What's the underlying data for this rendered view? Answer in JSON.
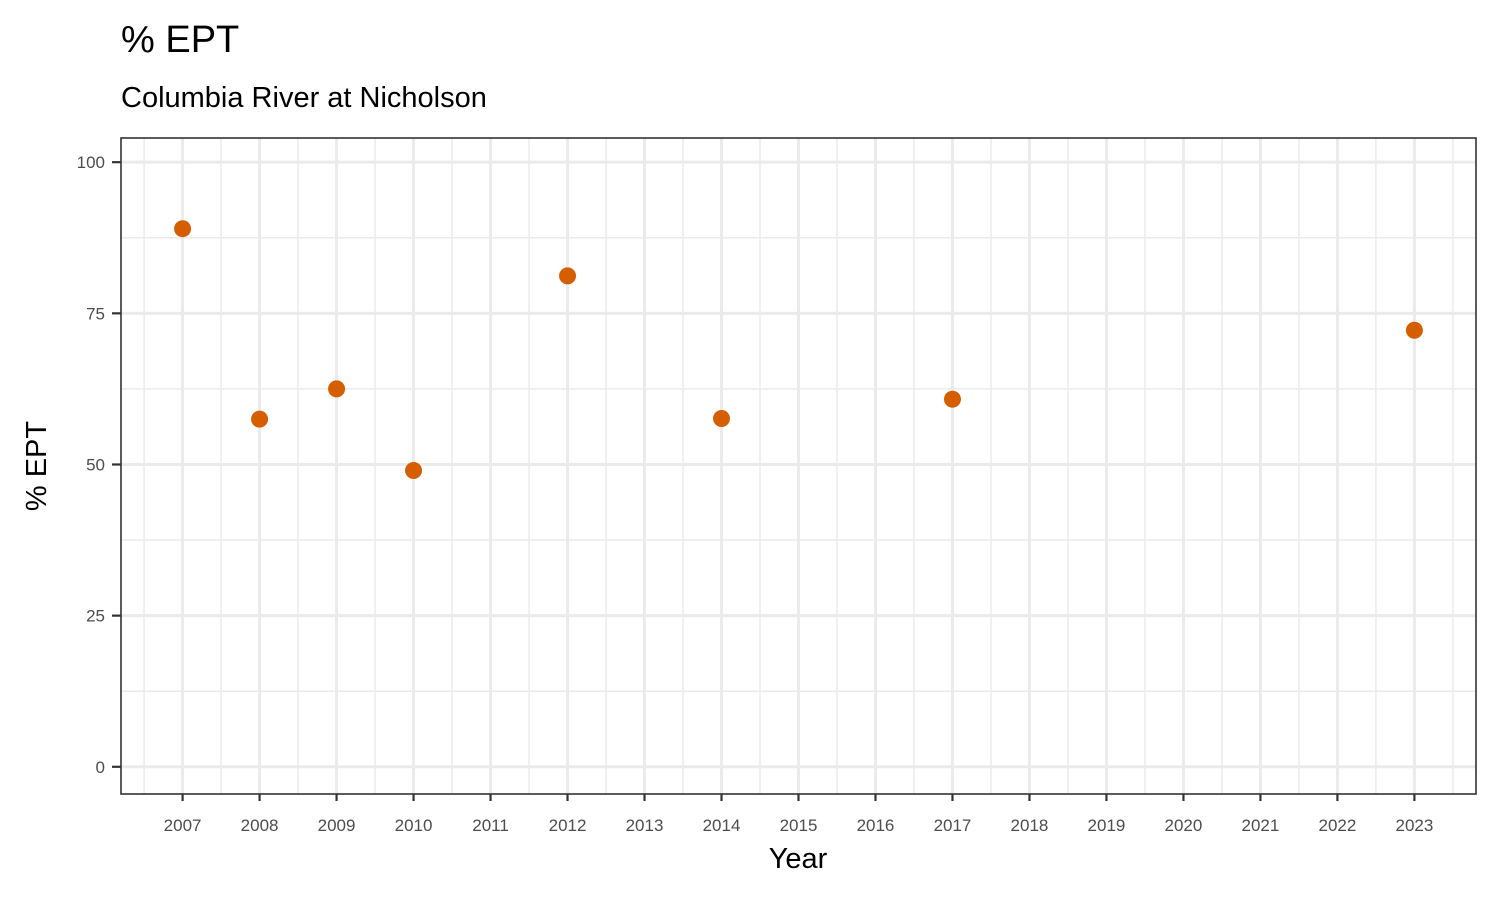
{
  "chart_data": {
    "type": "scatter",
    "title": "% EPT",
    "subtitle": "Columbia River at Nicholson",
    "xlabel": "Year",
    "ylabel": "% EPT",
    "x_ticks": [
      "2007",
      "2008",
      "2009",
      "2010",
      "2011",
      "2012",
      "2013",
      "2014",
      "2015",
      "2016",
      "2017",
      "2018",
      "2019",
      "2020",
      "2021",
      "2022",
      "2023"
    ],
    "y_ticks": [
      "0",
      "25",
      "50",
      "75",
      "100"
    ],
    "xlim": [
      2006.2,
      2023.8
    ],
    "ylim": [
      -4.5,
      104
    ],
    "grid": true,
    "point_color": "#d55e00",
    "points": [
      {
        "x": 2007,
        "y": 89.0
      },
      {
        "x": 2008,
        "y": 57.5
      },
      {
        "x": 2009,
        "y": 62.5
      },
      {
        "x": 2010,
        "y": 49.0
      },
      {
        "x": 2012,
        "y": 81.2
      },
      {
        "x": 2014,
        "y": 57.6
      },
      {
        "x": 2017,
        "y": 60.8
      },
      {
        "x": 2023,
        "y": 72.2
      }
    ]
  }
}
